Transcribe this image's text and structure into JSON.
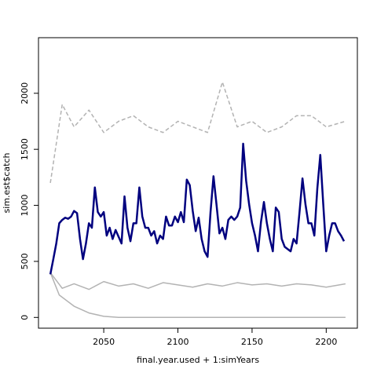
{
  "chart_data": {
    "type": "line",
    "xlabel": "final.year.used + 1:simYears",
    "ylabel": "sim.est$catch",
    "xlim": [
      2006,
      2221
    ],
    "ylim": [
      -96,
      2496
    ],
    "xticks": [
      2050,
      2100,
      2150,
      2200
    ],
    "yticks": [
      0,
      500,
      1000,
      1500,
      2000
    ],
    "x": [
      2014,
      2016,
      2018,
      2020,
      2022,
      2024,
      2026,
      2028,
      2030,
      2032,
      2034,
      2036,
      2038,
      2040,
      2042,
      2044,
      2046,
      2048,
      2050,
      2052,
      2054,
      2056,
      2058,
      2060,
      2062,
      2064,
      2066,
      2068,
      2070,
      2072,
      2074,
      2076,
      2078,
      2080,
      2082,
      2084,
      2086,
      2088,
      2090,
      2092,
      2094,
      2096,
      2098,
      2100,
      2102,
      2104,
      2106,
      2108,
      2110,
      2112,
      2114,
      2116,
      2118,
      2120,
      2122,
      2124,
      2126,
      2128,
      2130,
      2132,
      2134,
      2136,
      2138,
      2140,
      2142,
      2144,
      2146,
      2148,
      2150,
      2152,
      2154,
      2156,
      2158,
      2160,
      2162,
      2164,
      2166,
      2168,
      2170,
      2172,
      2174,
      2176,
      2178,
      2180,
      2182,
      2184,
      2186,
      2188,
      2190,
      2192,
      2194,
      2196,
      2198,
      2200,
      2202,
      2204,
      2206,
      2208,
      2210,
      2212
    ],
    "series": [
      {
        "color": "#b3b3b3",
        "dashed": true,
        "x": [
          2014,
          2022,
          2030,
          2040,
          2050,
          2060,
          2070,
          2080,
          2090,
          2100,
          2110,
          2120,
          2130,
          2140,
          2150,
          2160,
          2170,
          2180,
          2190,
          2200,
          2213
        ],
        "values": [
          1200,
          1900,
          1700,
          1850,
          1650,
          1750,
          1800,
          1700,
          1650,
          1750,
          1700,
          1650,
          2100,
          1700,
          1750,
          1650,
          1700,
          1800,
          1800,
          1700,
          1750
        ]
      },
      {
        "color": "#b3b3b3",
        "x": [
          2014,
          2022,
          2030,
          2040,
          2050,
          2060,
          2070,
          2080,
          2090,
          2100,
          2110,
          2120,
          2130,
          2140,
          2150,
          2160,
          2170,
          2180,
          2190,
          2200,
          2213
        ],
        "values": [
          400,
          260,
          300,
          250,
          320,
          280,
          300,
          260,
          310,
          290,
          270,
          300,
          280,
          310,
          290,
          300,
          280,
          300,
          290,
          270,
          300
        ]
      },
      {
        "color": "#b3b3b3",
        "x": [
          2014,
          2020,
          2030,
          2040,
          2050,
          2060,
          2213
        ],
        "values": [
          400,
          200,
          100,
          40,
          10,
          0,
          0
        ]
      },
      {
        "color": "#00007f",
        "values": [
          385,
          520,
          660,
          840,
          870,
          890,
          880,
          900,
          950,
          930,
          700,
          520,
          660,
          840,
          800,
          1160,
          940,
          900,
          940,
          730,
          800,
          700,
          780,
          720,
          660,
          1080,
          800,
          680,
          840,
          840,
          1160,
          900,
          800,
          800,
          730,
          770,
          660,
          730,
          700,
          900,
          820,
          820,
          900,
          850,
          940,
          850,
          1230,
          1180,
          950,
          770,
          890,
          700,
          590,
          540,
          940,
          1260,
          1010,
          750,
          800,
          700,
          870,
          900,
          870,
          900,
          980,
          1550,
          1220,
          1010,
          840,
          730,
          590,
          850,
          1030,
          840,
          700,
          590,
          980,
          940,
          700,
          630,
          610,
          590,
          700,
          660,
          940,
          1240,
          1010,
          840,
          840,
          730,
          1150,
          1450,
          1010,
          590,
          730,
          840,
          840,
          770,
          730,
          680
        ]
      }
    ]
  }
}
